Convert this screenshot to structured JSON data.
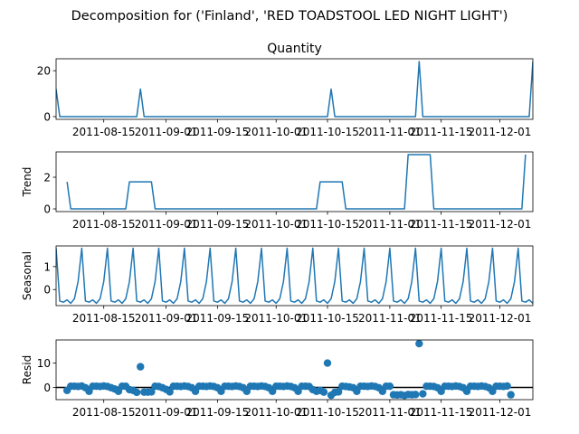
{
  "figure": {
    "suptitle": "Decomposition for ('Finland', 'RED TOADSTOOL LED NIGHT LIGHT')"
  },
  "colors": {
    "line": "#1f77b4",
    "marker": "#1f77b4",
    "axis": "#000000"
  },
  "x_ticks": [
    "2011-08-15",
    "2011-09-01",
    "2011-09-15",
    "2011-10-01",
    "2011-10-15",
    "2011-11-01",
    "2011-11-15",
    "2011-12-01"
  ],
  "chart_data": [
    {
      "type": "line",
      "title": "Quantity",
      "ylabel": "",
      "xlim": [
        0,
        130
      ],
      "ylim": [
        -1.2,
        25.2
      ],
      "yticks": [
        0,
        20
      ],
      "series": [
        {
          "values": [
            12,
            0,
            0,
            0,
            0,
            0,
            0,
            0,
            0,
            0,
            0,
            0,
            0,
            0,
            0,
            0,
            0,
            0,
            0,
            0,
            0,
            0,
            0,
            12,
            0,
            0,
            0,
            0,
            0,
            0,
            0,
            0,
            0,
            0,
            0,
            0,
            0,
            0,
            0,
            0,
            0,
            0,
            0,
            0,
            0,
            0,
            0,
            0,
            0,
            0,
            0,
            0,
            0,
            0,
            0,
            0,
            0,
            0,
            0,
            0,
            0,
            0,
            0,
            0,
            0,
            0,
            0,
            0,
            0,
            0,
            0,
            0,
            0,
            0,
            0,
            12,
            0,
            0,
            0,
            0,
            0,
            0,
            0,
            0,
            0,
            0,
            0,
            0,
            0,
            0,
            0,
            0,
            0,
            0,
            0,
            0,
            0,
            0,
            0,
            24,
            0,
            0,
            0,
            0,
            0,
            0,
            0,
            0,
            0,
            0,
            0,
            0,
            0,
            0,
            0,
            0,
            0,
            0,
            0,
            0,
            0,
            0,
            0,
            0,
            0,
            0,
            0,
            0,
            0,
            0,
            24
          ]
        }
      ]
    },
    {
      "type": "line",
      "title": "",
      "ylabel": "Trend",
      "xlim": [
        0,
        130
      ],
      "ylim": [
        -0.17,
        3.6
      ],
      "yticks": [
        0,
        2
      ],
      "series": [
        {
          "values": [
            null,
            null,
            null,
            1.71,
            0,
            0,
            0,
            0,
            0,
            0,
            0,
            0,
            0,
            0,
            0,
            0,
            0,
            0,
            0,
            0,
            1.71,
            1.71,
            1.71,
            1.71,
            1.71,
            1.71,
            1.71,
            0,
            0,
            0,
            0,
            0,
            0,
            0,
            0,
            0,
            0,
            0,
            0,
            0,
            0,
            0,
            0,
            0,
            0,
            0,
            0,
            0,
            0,
            0,
            0,
            0,
            0,
            0,
            0,
            0,
            0,
            0,
            0,
            0,
            0,
            0,
            0,
            0,
            0,
            0,
            0,
            0,
            0,
            0,
            0,
            0,
            1.71,
            1.71,
            1.71,
            1.71,
            1.71,
            1.71,
            1.71,
            0,
            0,
            0,
            0,
            0,
            0,
            0,
            0,
            0,
            0,
            0,
            0,
            0,
            0,
            0,
            0,
            0,
            3.43,
            3.43,
            3.43,
            3.43,
            3.43,
            3.43,
            3.43,
            0,
            0,
            0,
            0,
            0,
            0,
            0,
            0,
            0,
            0,
            0,
            0,
            0,
            0,
            0,
            0,
            0,
            0,
            0,
            0,
            0,
            0,
            0,
            0,
            0,
            3.43,
            null,
            null,
            null
          ]
        }
      ]
    },
    {
      "type": "line",
      "title": "",
      "ylabel": "Seasonal",
      "xlim": [
        0,
        130
      ],
      "ylim": [
        -0.7,
        1.9
      ],
      "yticks": [
        0,
        1
      ],
      "series": [
        {
          "pattern": [
            1.8,
            -0.5,
            -0.55,
            -0.45,
            -0.6,
            -0.4,
            0.35
          ],
          "length": 131
        }
      ]
    },
    {
      "type": "scatter",
      "title": "",
      "ylabel": "Resid",
      "xlim": [
        0,
        130
      ],
      "ylim": [
        -5,
        19.5
      ],
      "yticks": [
        0,
        10
      ],
      "hline": 0,
      "series": [
        {
          "values": [
            null,
            null,
            null,
            -1.2,
            0.5,
            0.5,
            0.4,
            0.6,
            -0.1,
            -1.6,
            0.5,
            0.5,
            0.4,
            0.6,
            0.4,
            -0.1,
            -0.6,
            -1.6,
            0.5,
            0.5,
            -0.9,
            -1.2,
            -2.0,
            8.5,
            -1.9,
            -1.9,
            -1.8,
            0.5,
            0.4,
            -0.1,
            -0.8,
            -1.8,
            0.5,
            0.5,
            0.4,
            0.6,
            0.4,
            -0.1,
            -1.6,
            0.5,
            0.5,
            0.4,
            0.6,
            0.4,
            -0.1,
            -1.6,
            0.5,
            0.5,
            0.4,
            0.6,
            0.4,
            -0.1,
            -1.6,
            0.5,
            0.5,
            0.4,
            0.6,
            0.4,
            -0.1,
            -1.6,
            0.5,
            0.5,
            0.4,
            0.6,
            0.4,
            -0.1,
            -1.6,
            0.5,
            0.5,
            0.4,
            -0.9,
            -1.6,
            -1.2,
            -1.9,
            10.0,
            -3.2,
            -2.0,
            -1.8,
            0.5,
            0.4,
            0.2,
            -0.1,
            -1.6,
            0.5,
            0.5,
            0.4,
            0.6,
            0.4,
            -0.1,
            -1.6,
            0.5,
            0.5,
            -3.0,
            -3.1,
            -3.0,
            -3.3,
            -2.9,
            -3.0,
            -2.9,
            18.0,
            -2.6,
            0.5,
            0.5,
            0.4,
            -0.1,
            -1.6,
            0.5,
            0.5,
            0.4,
            0.6,
            0.4,
            -0.1,
            -1.6,
            0.5,
            0.5,
            0.4,
            0.6,
            0.4,
            -0.1,
            -1.6,
            0.5,
            0.5,
            0.4,
            0.6,
            -3.0,
            null,
            null,
            null
          ]
        }
      ]
    }
  ]
}
